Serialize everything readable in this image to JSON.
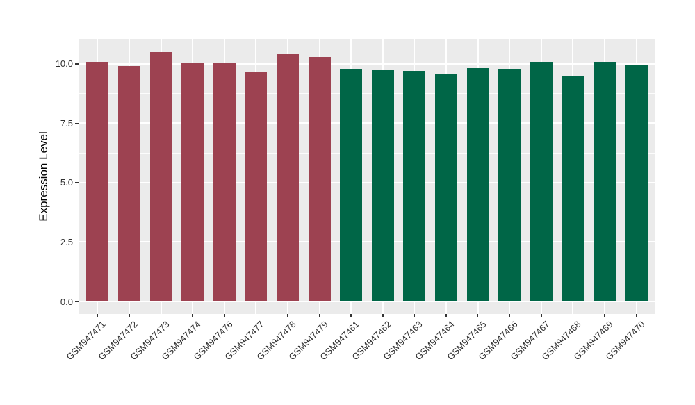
{
  "chart_data": {
    "type": "bar",
    "title": "",
    "xlabel": "",
    "ylabel": "Expression Level",
    "categories": [
      "GSM947471",
      "GSM947472",
      "GSM947473",
      "GSM947474",
      "GSM947476",
      "GSM947477",
      "GSM947478",
      "GSM947479",
      "GSM947461",
      "GSM947462",
      "GSM947463",
      "GSM947464",
      "GSM947465",
      "GSM947466",
      "GSM947467",
      "GSM947468",
      "GSM947469",
      "GSM947470"
    ],
    "values": [
      10.07,
      9.91,
      10.48,
      10.06,
      10.01,
      9.65,
      10.4,
      10.29,
      9.8,
      9.74,
      9.69,
      9.59,
      9.81,
      9.76,
      10.07,
      9.49,
      10.08,
      9.96
    ],
    "groups": [
      "red",
      "red",
      "red",
      "red",
      "red",
      "red",
      "red",
      "red",
      "green",
      "green",
      "green",
      "green",
      "green",
      "green",
      "green",
      "green",
      "green",
      "green"
    ],
    "group_colors": {
      "red": "#9D4251",
      "green": "#006647"
    },
    "ylim": [
      0,
      10.5
    ],
    "yticks": [
      0,
      2.5,
      5,
      7.5,
      10
    ],
    "ytick_labels": [
      "0.0",
      "2.5",
      "5.0",
      "7.5",
      "10.0"
    ],
    "yticks_minor": [
      1.25,
      3.75,
      6.25,
      8.75
    ],
    "grid": true,
    "legend_position": "none",
    "panel_background": "#EBEBEB",
    "grid_color": "#FFFFFF",
    "axis_text_color": "#303030",
    "figure_background": "#FFFFFF"
  }
}
